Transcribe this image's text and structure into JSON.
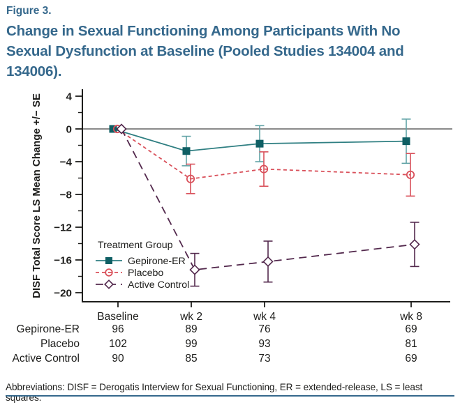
{
  "header": {
    "figure_label": "Figure 3.",
    "title": "Change in Sexual Functioning Among Participants With No\nSexual Dysfunction at Baseline (Pooled Studies 134004 and\n134006)."
  },
  "chart_data": {
    "type": "line",
    "ylabel": "DISF Total Score LS Mean Change +/− SE",
    "categories": [
      "Baseline",
      "wk 2",
      "wk 4",
      "wk 8"
    ],
    "x_weeks": [
      0,
      2,
      4,
      8
    ],
    "ylim": [
      -21,
      5
    ],
    "ytick_values": [
      4,
      0,
      -4,
      -8,
      -12,
      -16,
      -20
    ],
    "ytick_labels": [
      "4",
      "0",
      "−4",
      "−8",
      "−12",
      "−16",
      "−20"
    ],
    "ytick_minor": [
      2,
      -2,
      -6,
      -10,
      -14,
      -18
    ],
    "zero_line": 0,
    "grid": "off",
    "legend": {
      "title": "Treatment Group",
      "position": "inside-bottom-left"
    },
    "series": [
      {
        "name": "Gepirone-ER",
        "values": [
          0,
          -2.7,
          -1.8,
          -1.5
        ],
        "se": [
          null,
          1.8,
          2.2,
          2.7
        ],
        "marker": "square-filled",
        "line_style": "solid",
        "line_color": "#2f7f82",
        "marker_color": "#0f5f64",
        "err_color": "#61a3a6",
        "jitter": -7
      },
      {
        "name": "Placebo",
        "values": [
          0,
          -6.1,
          -4.9,
          -5.6
        ],
        "se": [
          null,
          1.8,
          2.1,
          2.6
        ],
        "marker": "circle-open",
        "line_style": "dashed",
        "line_color": "#d9505a",
        "marker_color": "#d9505a",
        "err_color": "#d9505a",
        "jitter": -1
      },
      {
        "name": "Active Control",
        "values": [
          0,
          -17.2,
          -16.2,
          -14.1
        ],
        "se": [
          null,
          2.0,
          2.5,
          2.7
        ],
        "marker": "diamond-open",
        "line_style": "longdash",
        "line_color": "#53294d",
        "marker_color": "#53294d",
        "err_color": "#53294d",
        "jitter": 5
      }
    ]
  },
  "table": {
    "row_labels": [
      "Gepirone-ER",
      "Placebo",
      "Active Control"
    ],
    "columns": [
      "Baseline",
      "wk 2",
      "wk 4",
      "wk 8"
    ],
    "rows": [
      [
        "96",
        "89",
        "76",
        "69"
      ],
      [
        "102",
        "99",
        "93",
        "81"
      ],
      [
        "90",
        "85",
        "73",
        "69"
      ]
    ]
  },
  "footer": {
    "abbreviations": "Abbreviations: DISF = Derogatis Interview for Sexual Functioning, ER = extended-release, LS = least squares."
  },
  "colors": {
    "accent_blue": "#35688c",
    "axis_black": "#1d1d1b",
    "zero_line_gray": "#8a8a8a"
  }
}
